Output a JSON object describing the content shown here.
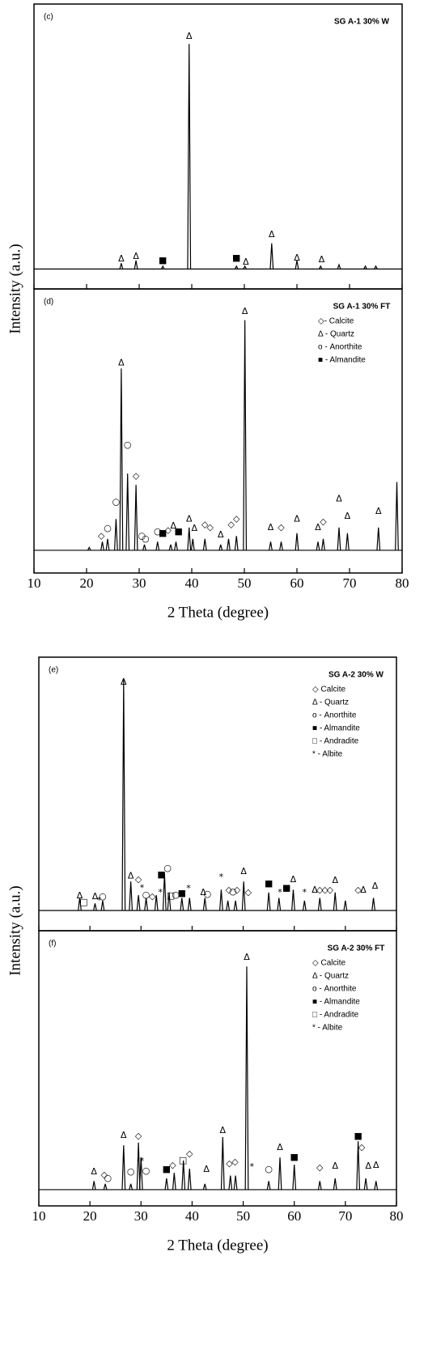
{
  "chart_data": [
    {
      "type": "line",
      "panel": "(c)",
      "title": "SG A-1 30% W",
      "xlim": [
        10,
        80
      ],
      "ylim": [
        0,
        100
      ],
      "baseline": 7,
      "x": [
        26.6,
        29.4,
        34.5,
        39.5,
        48.5,
        50.1,
        55.2,
        60,
        64.5,
        68,
        73,
        75
      ],
      "values": [
        9,
        10,
        8,
        86,
        8,
        8,
        16,
        10,
        8,
        8.5,
        8,
        8
      ],
      "annotations": [
        {
          "text": "Δ",
          "x": 26.6,
          "y": 10.5
        },
        {
          "text": "Δ",
          "x": 29.4,
          "y": 11.4
        },
        {
          "text": "■",
          "x": 34.5,
          "y": 10
        },
        {
          "text": "Δ",
          "x": 39.5,
          "y": 88.6
        },
        {
          "text": "■",
          "x": 48.5,
          "y": 10.8
        },
        {
          "text": "Δ",
          "x": 50.3,
          "y": 9.4
        },
        {
          "text": "Δ",
          "x": 55.2,
          "y": 19
        },
        {
          "text": "Δ",
          "x": 60,
          "y": 10.8
        },
        {
          "text": "Δ",
          "x": 64.7,
          "y": 10.2
        }
      ],
      "legend": []
    },
    {
      "type": "line",
      "panel": "(d)",
      "title": "SG A-1 30% FT",
      "xlim": [
        10,
        80
      ],
      "ylim": [
        0,
        100
      ],
      "baseline": 8,
      "xticks": [
        10,
        20,
        30,
        40,
        50,
        60,
        70,
        80
      ],
      "xlabel": "2 Theta (degree)",
      "ylabel": "Intensity (a.u.)",
      "x": [
        20.5,
        23,
        24,
        25.6,
        26.6,
        27.8,
        29.4,
        31,
        33.5,
        36,
        37,
        39.5,
        40.2,
        42.5,
        45.5,
        47,
        48.5,
        50.1,
        55,
        57,
        60,
        64,
        65,
        68,
        69.6,
        75.5,
        79
      ],
      "values": [
        9,
        11,
        12,
        19,
        72,
        35,
        31,
        10,
        11,
        10,
        11,
        16,
        12,
        12,
        10,
        12,
        13,
        89,
        11,
        11,
        14,
        11,
        12,
        16,
        14,
        16,
        32
      ],
      "annotations": [
        {
          "text": "◇",
          "x": 22.8,
          "y": 13
        },
        {
          "text": "○",
          "x": 24,
          "y": 15.7
        },
        {
          "text": "○",
          "x": 25.6,
          "y": 25
        },
        {
          "text": "Δ",
          "x": 26.6,
          "y": 74
        },
        {
          "text": "○",
          "x": 27.8,
          "y": 45
        },
        {
          "text": "◇",
          "x": 29.4,
          "y": 34
        },
        {
          "text": "○",
          "x": 30.5,
          "y": 13
        },
        {
          "text": "○",
          "x": 31.2,
          "y": 12
        },
        {
          "text": "○",
          "x": 33.5,
          "y": 14.5
        },
        {
          "text": "■",
          "x": 34.5,
          "y": 14
        },
        {
          "text": "◇",
          "x": 35.5,
          "y": 15
        },
        {
          "text": "Δ",
          "x": 36.5,
          "y": 16.5
        },
        {
          "text": "■",
          "x": 37.5,
          "y": 14.5
        },
        {
          "text": "Δ",
          "x": 39.5,
          "y": 19
        },
        {
          "text": "Δ",
          "x": 40.5,
          "y": 15.7
        },
        {
          "text": "◇",
          "x": 42.5,
          "y": 17
        },
        {
          "text": "◇",
          "x": 43.5,
          "y": 16
        },
        {
          "text": "Δ",
          "x": 45.5,
          "y": 13.4
        },
        {
          "text": "◇",
          "x": 47.5,
          "y": 17
        },
        {
          "text": "◇",
          "x": 48.5,
          "y": 19
        },
        {
          "text": "Δ",
          "x": 50.1,
          "y": 92
        },
        {
          "text": "Δ",
          "x": 55,
          "y": 16
        },
        {
          "text": "◇",
          "x": 57,
          "y": 16
        },
        {
          "text": "Δ",
          "x": 60,
          "y": 19
        },
        {
          "text": "Δ",
          "x": 64,
          "y": 16
        },
        {
          "text": "◇",
          "x": 65,
          "y": 18
        },
        {
          "text": "Δ",
          "x": 68,
          "y": 26
        },
        {
          "text": "Δ",
          "x": 69.6,
          "y": 20
        },
        {
          "text": "Δ",
          "x": 75.5,
          "y": 21.7
        }
      ],
      "legend": [
        "◇- Calcite",
        "Δ - Quartz",
        "ο - Anorthite",
        "■ - Almandite"
      ]
    },
    {
      "type": "line",
      "panel": "(e)",
      "title": "SG A-2 30% W",
      "xlim": [
        10,
        80
      ],
      "ylim": [
        0,
        100
      ],
      "baseline": 7.4,
      "x": [
        18,
        21,
        22.5,
        26.6,
        28,
        29.5,
        31,
        33,
        34.6,
        35.5,
        38,
        39.5,
        42.5,
        45.7,
        47,
        48.5,
        50.1,
        55,
        57,
        59.8,
        62,
        65,
        68,
        70,
        75.5
      ],
      "values": [
        12,
        10,
        11,
        92,
        18,
        13,
        12,
        13,
        21,
        14,
        12,
        12,
        12,
        15,
        11,
        11,
        18,
        14,
        12,
        15,
        11,
        12,
        14,
        11,
        12
      ],
      "annotations": [
        {
          "text": "Δ",
          "x": 18,
          "y": 12.7
        },
        {
          "text": "□",
          "x": 18.8,
          "y": 10.4
        },
        {
          "text": "Δ",
          "x": 21,
          "y": 12.4
        },
        {
          "text": "*",
          "x": 21.8,
          "y": 10.9
        },
        {
          "text": "○",
          "x": 22.5,
          "y": 12.4
        },
        {
          "text": "Δ",
          "x": 26.6,
          "y": 90.8
        },
        {
          "text": "Δ",
          "x": 28,
          "y": 20
        },
        {
          "text": "◇",
          "x": 29.5,
          "y": 18.6
        },
        {
          "text": "*",
          "x": 30.2,
          "y": 15.6
        },
        {
          "text": "○",
          "x": 31,
          "y": 13
        },
        {
          "text": "◇",
          "x": 32.2,
          "y": 12.4
        },
        {
          "text": "*",
          "x": 33.8,
          "y": 13.9
        },
        {
          "text": "■",
          "x": 34,
          "y": 20.4
        },
        {
          "text": "○",
          "x": 35.2,
          "y": 22.8
        },
        {
          "text": "□",
          "x": 35.8,
          "y": 12.7
        },
        {
          "text": "○",
          "x": 36.8,
          "y": 13
        },
        {
          "text": "■",
          "x": 38,
          "y": 13.6
        },
        {
          "text": "*",
          "x": 39.3,
          "y": 15.4
        },
        {
          "text": "Δ",
          "x": 42.2,
          "y": 13.9
        },
        {
          "text": "○",
          "x": 43,
          "y": 13.3
        },
        {
          "text": "*",
          "x": 45.7,
          "y": 19.5
        },
        {
          "text": "◇",
          "x": 47.2,
          "y": 14.8
        },
        {
          "text": "○",
          "x": 48,
          "y": 14.2
        },
        {
          "text": "◇",
          "x": 48.8,
          "y": 14.8
        },
        {
          "text": "Δ",
          "x": 50.1,
          "y": 21.6
        },
        {
          "text": "◇",
          "x": 51,
          "y": 13.9
        },
        {
          "text": "■",
          "x": 55,
          "y": 17.2
        },
        {
          "text": "*",
          "x": 57.2,
          "y": 13.9
        },
        {
          "text": "■",
          "x": 58.5,
          "y": 15.6
        },
        {
          "text": "Δ",
          "x": 59.8,
          "y": 18.6
        },
        {
          "text": "*",
          "x": 62,
          "y": 13.9
        },
        {
          "text": "Δ",
          "x": 64,
          "y": 14.8
        },
        {
          "text": "◇",
          "x": 65,
          "y": 14.8
        },
        {
          "text": "◇",
          "x": 66,
          "y": 14.8
        },
        {
          "text": "◇",
          "x": 67,
          "y": 14.8
        },
        {
          "text": "Δ",
          "x": 68,
          "y": 18.3
        },
        {
          "text": "◇",
          "x": 72.5,
          "y": 14.8
        },
        {
          "text": "Δ",
          "x": 73.5,
          "y": 14.8
        },
        {
          "text": "Δ",
          "x": 75.8,
          "y": 16.3
        }
      ],
      "legend": [
        "◇ Calcite",
        "Δ - Quartz",
        "ο - Anorthite",
        "■ - Almandite",
        "□ - Andradite",
        "* - Albite"
      ]
    },
    {
      "type": "line",
      "panel": "(f)",
      "title": "SG A-2 30% FT",
      "xlim": [
        10,
        80
      ],
      "ylim": [
        0,
        100
      ],
      "baseline": 5.9,
      "xticks": [
        10,
        20,
        30,
        40,
        50,
        60,
        70,
        80
      ],
      "xlabel": "2 Theta (degree)",
      "ylabel": "Intensity (a.u.)",
      "x": [
        20.8,
        23,
        26.6,
        28,
        29.5,
        30,
        35,
        36.5,
        38.3,
        39.5,
        42.5,
        46,
        47.5,
        48.5,
        50.7,
        55,
        57.2,
        60,
        65,
        68,
        72.5,
        74,
        76
      ],
      "values": [
        9,
        8,
        22,
        8,
        23,
        17.6,
        10,
        12,
        16.5,
        13.5,
        8,
        25,
        11,
        11,
        87,
        9,
        17.6,
        15,
        9,
        10,
        23.5,
        10,
        9
      ],
      "annotations": [
        {
          "text": "Δ",
          "x": 20.8,
          "y": 12.4
        },
        {
          "text": "◇",
          "x": 22.8,
          "y": 11.2
        },
        {
          "text": "○",
          "x": 23.5,
          "y": 10
        },
        {
          "text": "Δ",
          "x": 26.6,
          "y": 25.6
        },
        {
          "text": "○",
          "x": 28,
          "y": 12.4
        },
        {
          "text": "◇",
          "x": 29.5,
          "y": 25.3
        },
        {
          "text": "*",
          "x": 30.2,
          "y": 16.2
        },
        {
          "text": "○",
          "x": 31,
          "y": 12.6
        },
        {
          "text": "■",
          "x": 35,
          "y": 13.2
        },
        {
          "text": "◇",
          "x": 36.2,
          "y": 14.7
        },
        {
          "text": "□",
          "x": 38.2,
          "y": 16.5
        },
        {
          "text": "◇",
          "x": 39.5,
          "y": 18.8
        },
        {
          "text": "Δ",
          "x": 42.8,
          "y": 13.2
        },
        {
          "text": "Δ",
          "x": 46,
          "y": 27.4
        },
        {
          "text": "◇",
          "x": 47.3,
          "y": 15.3
        },
        {
          "text": "◇",
          "x": 48.4,
          "y": 15.9
        },
        {
          "text": "Δ",
          "x": 50.7,
          "y": 90.3
        },
        {
          "text": "*",
          "x": 51.7,
          "y": 14.1
        },
        {
          "text": "○",
          "x": 55,
          "y": 13.2
        },
        {
          "text": "Δ",
          "x": 57.2,
          "y": 21.2
        },
        {
          "text": "■",
          "x": 60,
          "y": 17.6
        },
        {
          "text": "◇",
          "x": 65,
          "y": 13.8
        },
        {
          "text": "Δ",
          "x": 68,
          "y": 14.4
        },
        {
          "text": "■",
          "x": 72.5,
          "y": 25.3
        },
        {
          "text": "◇",
          "x": 73.2,
          "y": 21.2
        },
        {
          "text": "Δ",
          "x": 74.5,
          "y": 14.4
        },
        {
          "text": "Δ",
          "x": 76,
          "y": 14.7
        }
      ],
      "legend": [
        "◇ Calcite",
        "Δ - Quartz",
        "ο - Anorthite",
        "■ - Almandite",
        "□ - Andradite",
        "* - Albite"
      ]
    }
  ]
}
